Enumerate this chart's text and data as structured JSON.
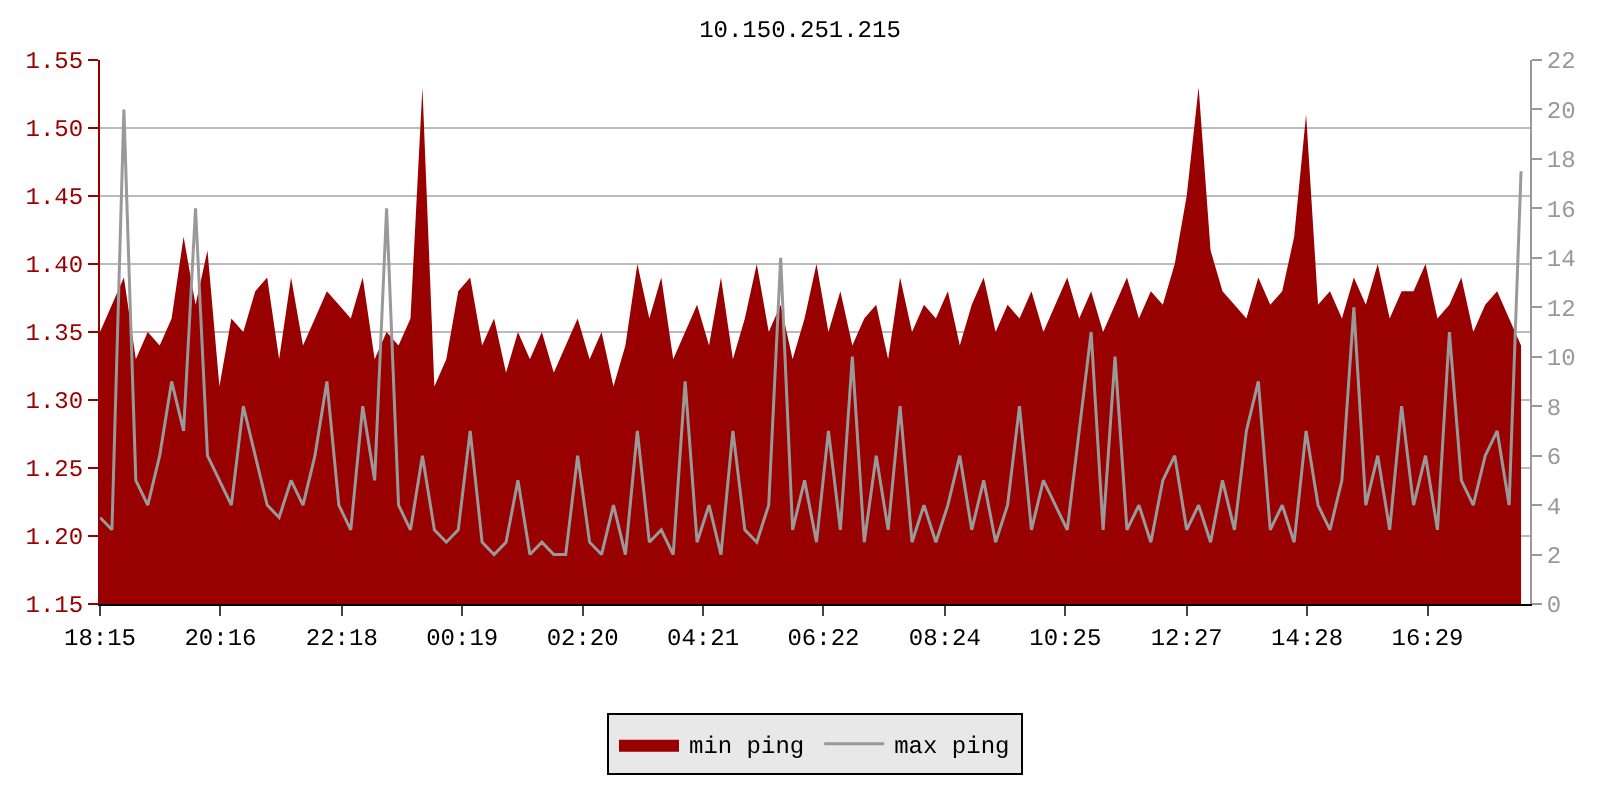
{
  "chart_data": {
    "type": "area",
    "title": "10.150.251.215",
    "x": [
      "--01-01T18:15",
      "--01-01T18:27",
      "--01-01T18:39",
      "--01-01T18:51",
      "--01-01T19:03",
      "--01-01T19:15",
      "--01-01T19:27",
      "--01-01T19:39",
      "--01-01T19:51",
      "--01-01T20:03",
      "--01-01T20:15",
      "--01-01T20:27",
      "--01-01T20:39",
      "--01-01T20:51",
      "--01-01T21:03",
      "--01-01T21:15",
      "--01-01T21:27",
      "--01-01T21:39",
      "--01-01T21:51",
      "--01-01T22:03",
      "--01-01T22:15",
      "--01-01T22:27",
      "--01-01T22:39",
      "--01-01T22:51",
      "--01-01T23:03",
      "--01-01T23:15",
      "--01-01T23:27",
      "--01-01T23:39",
      "--01-01T23:51",
      "--01-02T00:03",
      "--01-02T00:15",
      "--01-02T00:27",
      "--01-02T00:39",
      "--01-02T00:51",
      "--01-02T01:03",
      "--01-02T01:15",
      "--01-02T01:27",
      "--01-02T01:39",
      "--01-02T01:51",
      "--01-02T02:03",
      "--01-02T02:15",
      "--01-02T02:27",
      "--01-02T02:39",
      "--01-02T02:51",
      "--01-02T03:03",
      "--01-02T03:15",
      "--01-02T03:27",
      "--01-02T03:39",
      "--01-02T03:51",
      "--01-02T04:03",
      "--01-02T04:15",
      "--01-02T04:27",
      "--01-02T04:39",
      "--01-02T04:51",
      "--01-02T05:03",
      "--01-02T05:15",
      "--01-02T05:27",
      "--01-02T05:39",
      "--01-02T05:51",
      "--01-02T06:03",
      "--01-02T06:15",
      "--01-02T06:27",
      "--01-02T06:39",
      "--01-02T06:51",
      "--01-02T07:03",
      "--01-02T07:15",
      "--01-02T07:27",
      "--01-02T07:39",
      "--01-02T07:51",
      "--01-02T08:03",
      "--01-02T08:15",
      "--01-02T08:27",
      "--01-02T08:39",
      "--01-02T08:51",
      "--01-02T09:03",
      "--01-02T09:15",
      "--01-02T09:27",
      "--01-02T09:39",
      "--01-02T09:51",
      "--01-02T10:03",
      "--01-02T10:15",
      "--01-02T10:27",
      "--01-02T10:39",
      "--01-02T10:51",
      "--01-02T11:03",
      "--01-02T11:15",
      "--01-02T11:27",
      "--01-02T11:39",
      "--01-02T11:51",
      "--01-02T12:03",
      "--01-02T12:15",
      "--01-02T12:27",
      "--01-02T12:39",
      "--01-02T12:51",
      "--01-02T13:03",
      "--01-02T13:15",
      "--01-02T13:27",
      "--01-02T13:39",
      "--01-02T13:51",
      "--01-02T14:03",
      "--01-02T14:15",
      "--01-02T14:27",
      "--01-02T14:39",
      "--01-02T14:51",
      "--01-02T15:03",
      "--01-02T15:15",
      "--01-02T15:27",
      "--01-02T15:39",
      "--01-02T15:51",
      "--01-02T16:03",
      "--01-02T16:15",
      "--01-02T16:27",
      "--01-02T16:39",
      "--01-02T16:51",
      "--01-02T17:03",
      "--01-02T17:15",
      "--01-02T17:27",
      "--01-02T17:39",
      "--01-02T17:51",
      "--01-02T18:03"
    ],
    "series": [
      {
        "name": "min ping",
        "color": "#990000",
        "values": [
          1.35,
          1.37,
          1.39,
          1.33,
          1.35,
          1.34,
          1.36,
          1.42,
          1.37,
          1.41,
          1.31,
          1.36,
          1.35,
          1.38,
          1.39,
          1.33,
          1.39,
          1.34,
          1.36,
          1.38,
          1.37,
          1.36,
          1.39,
          1.33,
          1.35,
          1.34,
          1.36,
          1.53,
          1.31,
          1.33,
          1.38,
          1.39,
          1.34,
          1.36,
          1.32,
          1.35,
          1.33,
          1.35,
          1.32,
          1.34,
          1.36,
          1.33,
          1.35,
          1.31,
          1.34,
          1.4,
          1.36,
          1.39,
          1.33,
          1.35,
          1.37,
          1.34,
          1.39,
          1.33,
          1.36,
          1.4,
          1.35,
          1.37,
          1.33,
          1.36,
          1.4,
          1.35,
          1.38,
          1.34,
          1.36,
          1.37,
          1.33,
          1.39,
          1.35,
          1.37,
          1.36,
          1.38,
          1.34,
          1.37,
          1.39,
          1.35,
          1.37,
          1.36,
          1.38,
          1.35,
          1.37,
          1.39,
          1.36,
          1.38,
          1.35,
          1.37,
          1.39,
          1.36,
          1.38,
          1.37,
          1.4,
          1.45,
          1.53,
          1.41,
          1.38,
          1.37,
          1.36,
          1.39,
          1.37,
          1.38,
          1.42,
          1.51,
          1.37,
          1.38,
          1.36,
          1.39,
          1.37,
          1.4,
          1.36,
          1.38,
          1.38,
          1.4,
          1.36,
          1.37,
          1.39,
          1.35,
          1.37,
          1.38,
          1.36,
          1.34
        ]
      },
      {
        "name": "max ping",
        "color": "#999999",
        "type": "line",
        "axis": "y2",
        "values": [
          3.5,
          3,
          20,
          5,
          4,
          6,
          9,
          7,
          16,
          6,
          5,
          4,
          8,
          6,
          4,
          3.5,
          5,
          4,
          6,
          9,
          4,
          3,
          8,
          5,
          16,
          4,
          3,
          6,
          3,
          2.5,
          3,
          7,
          2.5,
          2,
          2.5,
          5,
          2,
          2.5,
          2,
          2,
          6,
          2.5,
          2,
          4,
          2,
          7,
          2.5,
          3,
          2,
          9,
          2.5,
          4,
          2,
          7,
          3,
          2.5,
          4,
          14,
          3,
          5,
          2.5,
          7,
          3,
          10,
          2.5,
          6,
          3,
          8,
          2.5,
          4,
          2.5,
          4,
          6,
          3,
          5,
          2.5,
          4,
          8,
          3,
          5,
          4,
          3,
          7,
          11,
          3,
          10,
          3,
          4,
          2.5,
          5,
          6,
          3,
          4,
          2.5,
          5,
          3,
          7,
          9,
          3,
          4,
          2.5,
          7,
          4,
          3,
          5,
          12,
          4,
          6,
          3,
          8,
          4,
          6,
          3,
          11,
          5,
          4,
          6,
          7,
          4,
          17.5
        ]
      }
    ],
    "xlim": [
      "--01-01T18:15",
      "--01-02T18:12"
    ],
    "xticks": [
      {
        "value": "--01-01T18:15",
        "label": "18:15"
      },
      {
        "value": "--01-01T20:16",
        "label": "20:16"
      },
      {
        "value": "--01-01T22:18",
        "label": "22:18"
      },
      {
        "value": "--01-02T00:19",
        "label": "00:19"
      },
      {
        "value": "--01-02T02:20",
        "label": "02:20"
      },
      {
        "value": "--01-02T04:21",
        "label": "04:21"
      },
      {
        "value": "--01-02T06:22",
        "label": "06:22"
      },
      {
        "value": "--01-02T08:24",
        "label": "08:24"
      },
      {
        "value": "--01-02T10:25",
        "label": "10:25"
      },
      {
        "value": "--01-02T12:27",
        "label": "12:27"
      },
      {
        "value": "--01-02T14:28",
        "label": "14:28"
      },
      {
        "value": "--01-02T16:29",
        "label": "16:29"
      }
    ],
    "ylim": [
      1.15,
      1.55
    ],
    "yticks": [
      {
        "value": 1.15,
        "label": "1.15"
      },
      {
        "value": 1.2,
        "label": "1.20"
      },
      {
        "value": 1.25,
        "label": "1.25"
      },
      {
        "value": 1.3,
        "label": "1.30"
      },
      {
        "value": 1.35,
        "label": "1.35"
      },
      {
        "value": 1.4,
        "label": "1.40"
      },
      {
        "value": 1.45,
        "label": "1.45"
      },
      {
        "value": 1.5,
        "label": "1.50"
      },
      {
        "value": 1.55,
        "label": "1.55"
      }
    ],
    "y2lim": [
      0,
      22
    ],
    "y2ticks": [
      0,
      2,
      4,
      6,
      8,
      10,
      12,
      14,
      16,
      18,
      20,
      22
    ],
    "grid": "y",
    "legend": "bottom"
  }
}
